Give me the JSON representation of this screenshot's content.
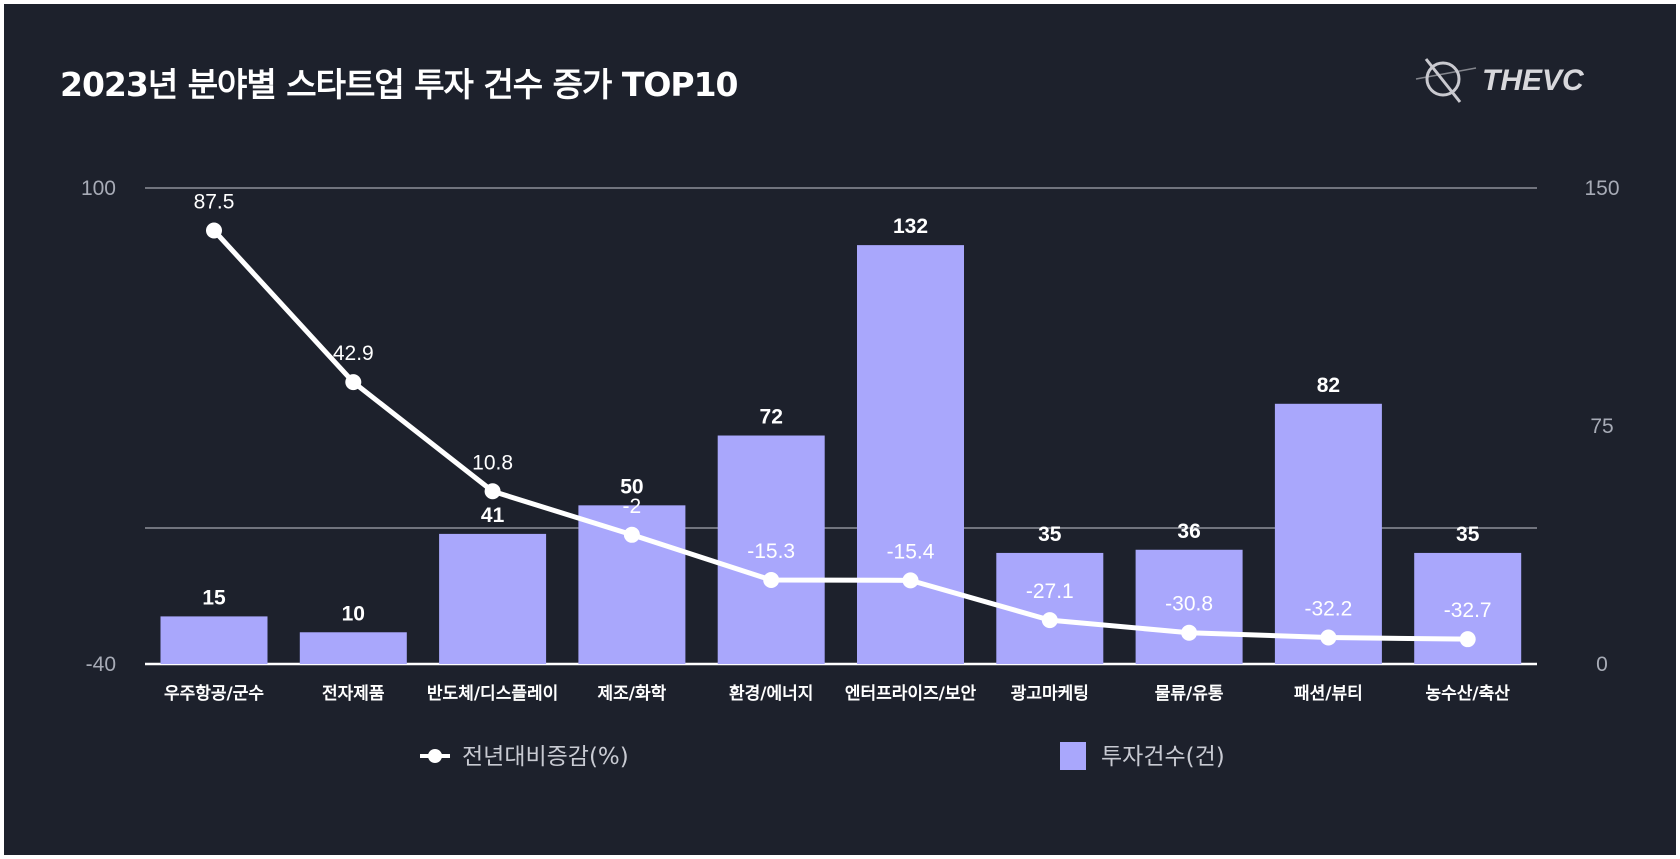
{
  "chart_data": {
    "type": "bar+line",
    "title": "2023년 분야별 스타트업 투자 건수 증가 TOP10",
    "brand": "THEVC",
    "categories": [
      "우주항공/군수",
      "전자제품",
      "반도체/디스플레이",
      "제조/화학",
      "환경/에너지",
      "엔터프라이즈/보안",
      "광고마케팅",
      "물류/유통",
      "패션/뷰티",
      "농수산/축산"
    ],
    "series": [
      {
        "name": "투자건수(건)",
        "type": "bar",
        "axis": "right",
        "color": "#a9a7fc",
        "values": [
          15,
          10,
          41,
          50,
          72,
          132,
          35,
          36,
          82,
          35
        ]
      },
      {
        "name": "전년대비증감(%)",
        "type": "line",
        "axis": "left",
        "color": "#ffffff",
        "values": [
          87.5,
          42.9,
          10.8,
          -2,
          -15.3,
          -15.4,
          -27.1,
          -30.8,
          -32.2,
          -32.7
        ]
      }
    ],
    "left_axis": {
      "ylim": [
        -40,
        100
      ],
      "tick_labels": [
        "100",
        "-40"
      ]
    },
    "right_axis": {
      "ylim": [
        0,
        150
      ],
      "tick_labels": [
        "150",
        "75",
        "0"
      ]
    },
    "grid": true,
    "legend": "bottom",
    "background": "#1d212c"
  }
}
